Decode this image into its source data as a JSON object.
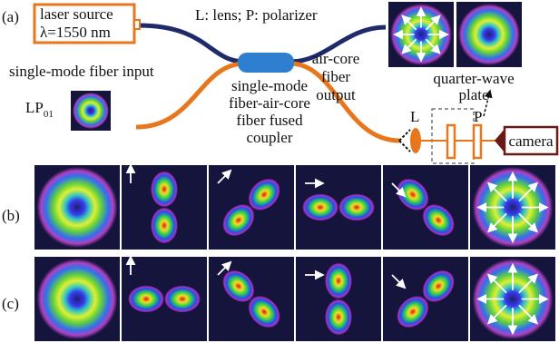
{
  "panel_a": {
    "label": "(a)",
    "laser": {
      "lines": [
        "laser source",
        "λ=1550 nm"
      ]
    },
    "legend": "L: lens; P: polarizer",
    "input_label": "single-mode fiber input",
    "mode": {
      "main": "LP",
      "sub": "01"
    },
    "coupler": {
      "lines": [
        "single-mode",
        "fiber-air-core",
        "fiber fused",
        "coupler"
      ]
    },
    "output": {
      "lines": [
        "air-core",
        "fiber",
        "output"
      ]
    },
    "waveplate": {
      "lines": [
        "quarter-wave",
        "plate"
      ]
    },
    "lens": "L",
    "polarizer": "P",
    "camera": "camera"
  },
  "panel_b": {
    "label": "(b)"
  },
  "panel_c": {
    "label": "(c)"
  }
}
